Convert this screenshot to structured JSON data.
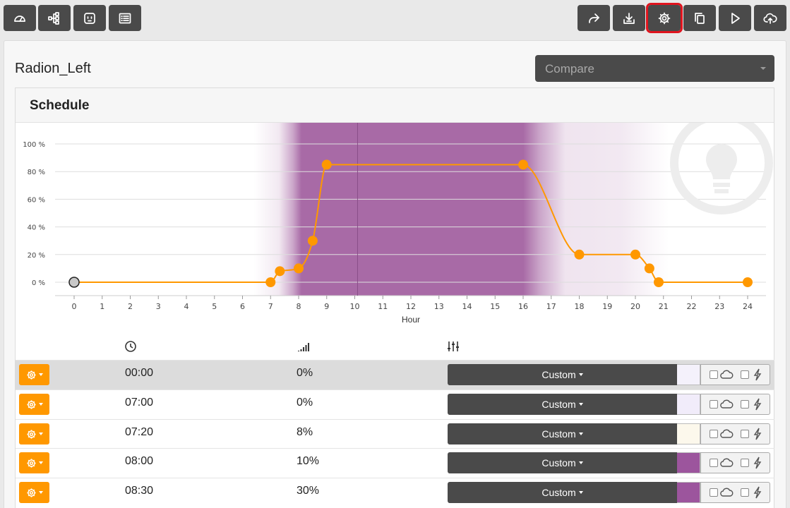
{
  "toolbar": {
    "left": [
      {
        "name": "dashboard-button",
        "icon": "gauge-icon"
      },
      {
        "name": "network-button",
        "icon": "hierarchy-icon"
      },
      {
        "name": "outlet-button",
        "icon": "power-outlet-icon"
      },
      {
        "name": "list-button",
        "icon": "list-icon"
      }
    ],
    "right": [
      {
        "name": "share-button",
        "icon": "share-arrow-icon"
      },
      {
        "name": "download-button",
        "icon": "download-tray-icon"
      },
      {
        "name": "settings-button",
        "icon": "gear-icon",
        "selected": true
      },
      {
        "name": "copy-button",
        "icon": "copy-icon"
      },
      {
        "name": "play-button",
        "icon": "play-icon"
      },
      {
        "name": "upload-button",
        "icon": "cloud-upload-icon"
      }
    ],
    "selected_color": "#e0141e"
  },
  "page": {
    "title": "Radion_Left",
    "compare_placeholder": "Compare"
  },
  "panel": {
    "title": "Schedule"
  },
  "colors": {
    "series": "#ff9800",
    "light_purple": "#a86aa6",
    "button_dark": "#4a4a4a",
    "accent_orange": "#ff9800"
  },
  "chart_data": {
    "type": "line",
    "xlabel": "Hour",
    "ylabel": "",
    "xlim": [
      0,
      24
    ],
    "ylim": [
      0,
      100
    ],
    "x_ticks": [
      "0",
      "1",
      "2",
      "3",
      "4",
      "5",
      "6",
      "7",
      "8",
      "9",
      "10",
      "11",
      "12",
      "13",
      "14",
      "15",
      "16",
      "17",
      "18",
      "19",
      "20",
      "21",
      "22",
      "23",
      "24"
    ],
    "y_ticks": [
      "0 %",
      "20 %",
      "40 %",
      "60 %",
      "80 %",
      "100 %"
    ],
    "grid": true,
    "points": [
      {
        "hour": 0,
        "value": 0
      },
      {
        "hour": 7,
        "value": 0
      },
      {
        "hour": 7.33,
        "value": 8
      },
      {
        "hour": 8,
        "value": 10
      },
      {
        "hour": 8.5,
        "value": 30
      },
      {
        "hour": 9,
        "value": 85
      },
      {
        "hour": 16,
        "value": 85
      },
      {
        "hour": 18,
        "value": 20
      },
      {
        "hour": 20,
        "value": 20
      },
      {
        "hour": 20.5,
        "value": 10
      },
      {
        "hour": 20.83,
        "value": 0
      },
      {
        "hour": 24,
        "value": 0
      }
    ],
    "current_hour": 10.1,
    "watermark_icon": "lightbulb-icon"
  },
  "table": {
    "headers": [
      {
        "name": "time-column-header",
        "icon": "clock-icon"
      },
      {
        "name": "intensity-column-header",
        "icon": "signal-bars-icon"
      },
      {
        "name": "settings-column-header",
        "icon": "sliders-icon"
      }
    ],
    "rows": [
      {
        "time": "00:00",
        "percent": "0%",
        "mode": "Custom",
        "swatch": "#f4f1fb"
      },
      {
        "time": "07:00",
        "percent": "0%",
        "mode": "Custom",
        "swatch": "#f1ecfa"
      },
      {
        "time": "07:20",
        "percent": "8%",
        "mode": "Custom",
        "swatch": "#fcf8ec"
      },
      {
        "time": "08:00",
        "percent": "10%",
        "mode": "Custom",
        "swatch": "#9c559d"
      },
      {
        "time": "08:30",
        "percent": "30%",
        "mode": "Custom",
        "swatch": "#9c559d"
      }
    ]
  }
}
